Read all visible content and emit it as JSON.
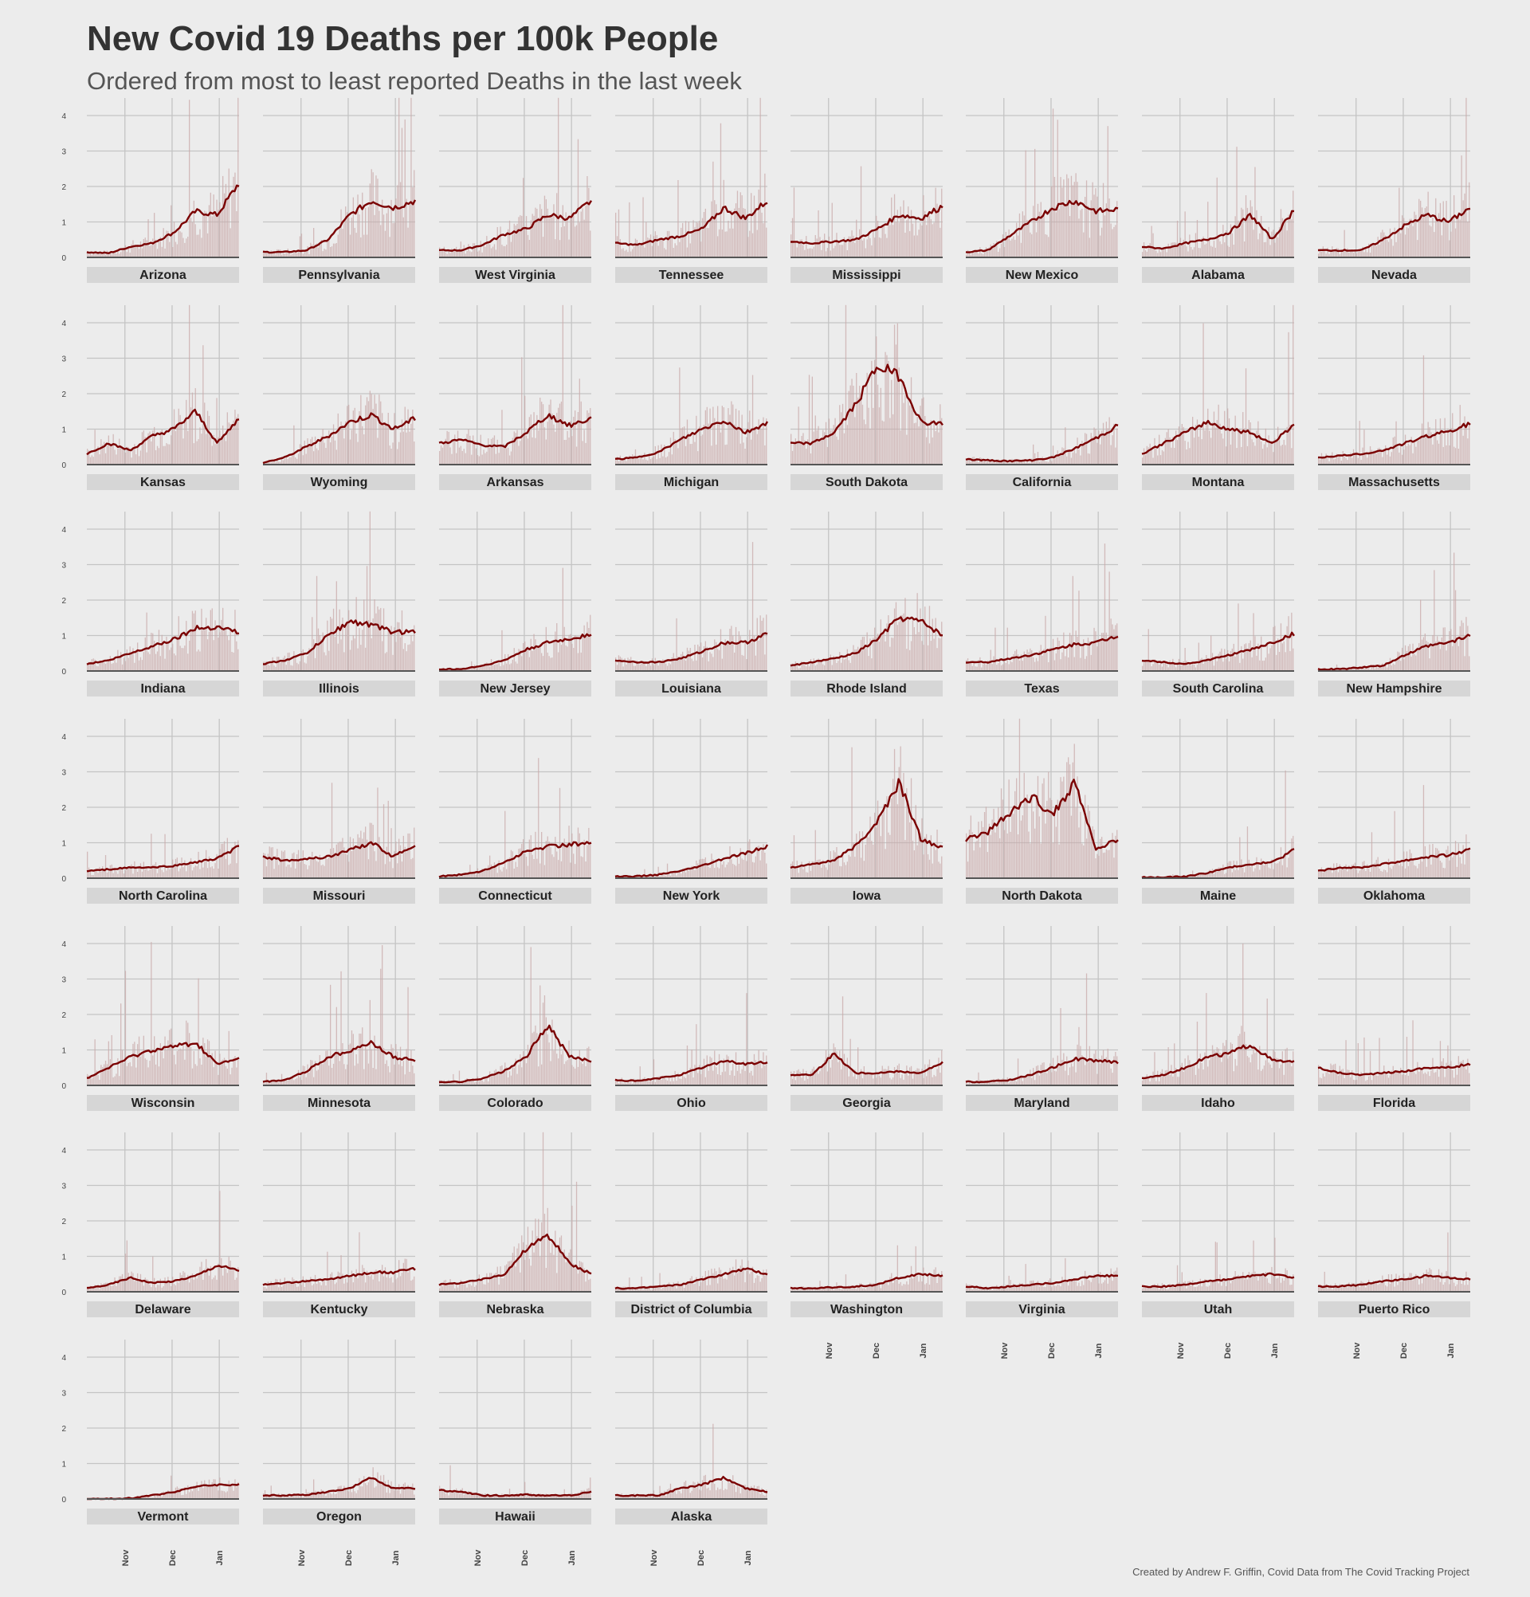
{
  "title": "New Covid 19 Deaths per 100k People",
  "subtitle": "Ordered from most to least reported Deaths in the last week",
  "caption": "Created by Andrew F. Griffin, Covid Data from The Covid Tracking Project",
  "colors": {
    "background": "#ececec",
    "panel_strip": "#d6d6d6",
    "grid": "#c4c4c4",
    "baseline": "#555555",
    "bars": "#c9a9a9",
    "line": "#7a0000"
  },
  "chart_data": {
    "type": "line",
    "note_series": "7-day average line drawn over daily bars; values estimated by eye from the image",
    "x_tick_labels": [
      "Nov",
      "Dec",
      "Jan"
    ],
    "y_tick_labels": [
      "0",
      "1",
      "2",
      "3",
      "4"
    ],
    "ylim": [
      0,
      4.5
    ],
    "x_dates": [
      "Oct 1",
      "Oct 15",
      "Nov 1",
      "Nov 15",
      "Dec 1",
      "Dec 15",
      "Jan 1",
      "Jan 10"
    ],
    "grid": true,
    "panels": [
      {
        "name": "Arizona",
        "avg": [
          0.15,
          0.12,
          0.3,
          0.4,
          0.7,
          1.3,
          1.2,
          2.1
        ]
      },
      {
        "name": "Pennsylvania",
        "avg": [
          0.15,
          0.15,
          0.2,
          0.5,
          1.2,
          1.6,
          1.4,
          1.6
        ]
      },
      {
        "name": "West Virginia",
        "avg": [
          0.2,
          0.2,
          0.35,
          0.65,
          0.8,
          1.2,
          1.1,
          1.6
        ]
      },
      {
        "name": "Tennessee",
        "avg": [
          0.4,
          0.35,
          0.5,
          0.6,
          0.8,
          1.4,
          1.1,
          1.6
        ]
      },
      {
        "name": "Mississippi",
        "avg": [
          0.45,
          0.4,
          0.45,
          0.5,
          0.8,
          1.2,
          1.1,
          1.45
        ]
      },
      {
        "name": "New Mexico",
        "avg": [
          0.15,
          0.2,
          0.6,
          1.0,
          1.4,
          1.6,
          1.3,
          1.35
        ]
      },
      {
        "name": "Alabama",
        "avg": [
          0.3,
          0.25,
          0.4,
          0.5,
          0.7,
          1.2,
          0.5,
          1.35
        ]
      },
      {
        "name": "Nevada",
        "avg": [
          0.2,
          0.2,
          0.2,
          0.5,
          0.9,
          1.2,
          1.0,
          1.4
        ]
      },
      {
        "name": "Kansas",
        "avg": [
          0.3,
          0.6,
          0.4,
          0.8,
          1.0,
          1.5,
          0.6,
          1.3
        ]
      },
      {
        "name": "Wyoming",
        "avg": [
          0.05,
          0.2,
          0.5,
          0.8,
          1.2,
          1.4,
          1.0,
          1.3
        ]
      },
      {
        "name": "Arkansas",
        "avg": [
          0.6,
          0.7,
          0.55,
          0.5,
          0.9,
          1.4,
          1.1,
          1.3
        ]
      },
      {
        "name": "Michigan",
        "avg": [
          0.15,
          0.2,
          0.35,
          0.7,
          1.0,
          1.25,
          0.9,
          1.2
        ]
      },
      {
        "name": "South Dakota",
        "avg": [
          0.6,
          0.6,
          0.9,
          1.7,
          2.8,
          2.5,
          1.2,
          1.15
        ]
      },
      {
        "name": "California",
        "avg": [
          0.15,
          0.12,
          0.1,
          0.12,
          0.2,
          0.45,
          0.75,
          1.1
        ]
      },
      {
        "name": "Montana",
        "avg": [
          0.3,
          0.6,
          0.9,
          1.2,
          1.0,
          0.9,
          0.6,
          1.15
        ]
      },
      {
        "name": "Massachusetts",
        "avg": [
          0.2,
          0.25,
          0.3,
          0.4,
          0.6,
          0.8,
          0.95,
          1.15
        ]
      },
      {
        "name": "Indiana",
        "avg": [
          0.2,
          0.3,
          0.5,
          0.7,
          0.9,
          1.2,
          1.25,
          1.1
        ]
      },
      {
        "name": "Illinois",
        "avg": [
          0.2,
          0.3,
          0.5,
          1.0,
          1.4,
          1.3,
          1.1,
          1.1
        ]
      },
      {
        "name": "New Jersey",
        "avg": [
          0.05,
          0.05,
          0.15,
          0.3,
          0.6,
          0.8,
          0.9,
          1.05
        ]
      },
      {
        "name": "Louisiana",
        "avg": [
          0.3,
          0.25,
          0.25,
          0.35,
          0.55,
          0.8,
          0.8,
          1.05
        ]
      },
      {
        "name": "Rhode Island",
        "avg": [
          0.15,
          0.25,
          0.35,
          0.5,
          0.9,
          1.5,
          1.4,
          1.0
        ]
      },
      {
        "name": "Texas",
        "avg": [
          0.25,
          0.25,
          0.35,
          0.45,
          0.6,
          0.75,
          0.8,
          1.0
        ]
      },
      {
        "name": "South Carolina",
        "avg": [
          0.3,
          0.25,
          0.2,
          0.3,
          0.45,
          0.6,
          0.8,
          1.05
        ]
      },
      {
        "name": "New Hampshire",
        "avg": [
          0.05,
          0.05,
          0.1,
          0.15,
          0.45,
          0.7,
          0.8,
          1.0
        ]
      },
      {
        "name": "North Carolina",
        "avg": [
          0.2,
          0.25,
          0.3,
          0.3,
          0.35,
          0.45,
          0.55,
          0.9
        ]
      },
      {
        "name": "Missouri",
        "avg": [
          0.6,
          0.5,
          0.55,
          0.6,
          0.8,
          1.0,
          0.6,
          0.95
        ]
      },
      {
        "name": "Connecticut",
        "avg": [
          0.05,
          0.1,
          0.2,
          0.45,
          0.75,
          0.9,
          0.95,
          1.0
        ]
      },
      {
        "name": "New York",
        "avg": [
          0.05,
          0.05,
          0.1,
          0.2,
          0.35,
          0.55,
          0.7,
          0.9
        ]
      },
      {
        "name": "Iowa",
        "avg": [
          0.3,
          0.4,
          0.5,
          0.9,
          1.6,
          2.7,
          1.1,
          0.85
        ]
      },
      {
        "name": "North Dakota",
        "avg": [
          1.1,
          1.3,
          1.8,
          2.3,
          1.8,
          2.7,
          0.8,
          1.1
        ]
      },
      {
        "name": "Maine",
        "avg": [
          0.02,
          0.02,
          0.05,
          0.15,
          0.3,
          0.4,
          0.45,
          0.8
        ]
      },
      {
        "name": "Oklahoma",
        "avg": [
          0.2,
          0.3,
          0.3,
          0.4,
          0.5,
          0.6,
          0.65,
          0.8
        ]
      },
      {
        "name": "Wisconsin",
        "avg": [
          0.2,
          0.5,
          0.8,
          1.0,
          1.1,
          1.2,
          0.6,
          0.75
        ]
      },
      {
        "name": "Minnesota",
        "avg": [
          0.1,
          0.15,
          0.4,
          0.8,
          1.0,
          1.2,
          0.8,
          0.7
        ]
      },
      {
        "name": "Colorado",
        "avg": [
          0.1,
          0.1,
          0.2,
          0.4,
          0.8,
          1.7,
          0.8,
          0.7
        ]
      },
      {
        "name": "Ohio",
        "avg": [
          0.15,
          0.12,
          0.2,
          0.3,
          0.5,
          0.7,
          0.6,
          0.65
        ]
      },
      {
        "name": "Georgia",
        "avg": [
          0.3,
          0.3,
          0.9,
          0.35,
          0.35,
          0.4,
          0.35,
          0.65
        ]
      },
      {
        "name": "Maryland",
        "avg": [
          0.1,
          0.1,
          0.15,
          0.3,
          0.5,
          0.75,
          0.7,
          0.65
        ]
      },
      {
        "name": "Idaho",
        "avg": [
          0.2,
          0.3,
          0.5,
          0.8,
          0.9,
          1.15,
          0.7,
          0.65
        ]
      },
      {
        "name": "Florida",
        "avg": [
          0.5,
          0.35,
          0.3,
          0.35,
          0.4,
          0.5,
          0.5,
          0.6
        ]
      },
      {
        "name": "Delaware",
        "avg": [
          0.1,
          0.2,
          0.4,
          0.25,
          0.3,
          0.45,
          0.75,
          0.6
        ]
      },
      {
        "name": "Kentucky",
        "avg": [
          0.2,
          0.25,
          0.3,
          0.35,
          0.45,
          0.55,
          0.55,
          0.65
        ]
      },
      {
        "name": "Nebraska",
        "avg": [
          0.2,
          0.25,
          0.35,
          0.5,
          1.2,
          1.6,
          0.8,
          0.5
        ]
      },
      {
        "name": "District of Columbia",
        "avg": [
          0.1,
          0.1,
          0.15,
          0.2,
          0.35,
          0.5,
          0.65,
          0.5
        ]
      },
      {
        "name": "Washington",
        "avg": [
          0.1,
          0.1,
          0.12,
          0.15,
          0.2,
          0.4,
          0.5,
          0.45
        ]
      },
      {
        "name": "Virginia",
        "avg": [
          0.15,
          0.1,
          0.15,
          0.2,
          0.25,
          0.35,
          0.45,
          0.45
        ]
      },
      {
        "name": "Utah",
        "avg": [
          0.15,
          0.15,
          0.2,
          0.3,
          0.35,
          0.45,
          0.5,
          0.4
        ]
      },
      {
        "name": "Puerto Rico",
        "avg": [
          0.15,
          0.15,
          0.2,
          0.3,
          0.35,
          0.45,
          0.4,
          0.35
        ]
      },
      {
        "name": "Vermont",
        "avg": [
          0.0,
          0.0,
          0.02,
          0.1,
          0.2,
          0.35,
          0.4,
          0.4
        ]
      },
      {
        "name": "Oregon",
        "avg": [
          0.1,
          0.1,
          0.12,
          0.2,
          0.3,
          0.6,
          0.3,
          0.3
        ]
      },
      {
        "name": "Hawaii",
        "avg": [
          0.25,
          0.2,
          0.1,
          0.1,
          0.12,
          0.1,
          0.1,
          0.2
        ]
      },
      {
        "name": "Alaska",
        "avg": [
          0.1,
          0.1,
          0.1,
          0.3,
          0.4,
          0.6,
          0.3,
          0.2
        ]
      }
    ]
  }
}
